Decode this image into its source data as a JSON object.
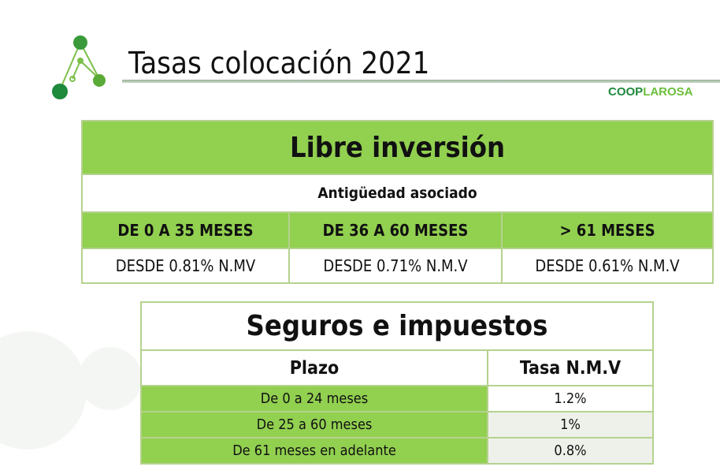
{
  "header": {
    "title": "Tasas colocación 2021",
    "brand_part1": "COOP",
    "brand_part2": "LAROSA"
  },
  "colors": {
    "green": "#92d050",
    "dark_green": "#1e8a3c",
    "light_green": "#6cbf3c"
  },
  "libre": {
    "title": "Libre inversión",
    "subtitle": "Antigüedad asociado",
    "columns": [
      "DE 0 A 35 MESES",
      "DE 36 A 60 MESES",
      "> 61 MESES"
    ],
    "values": [
      "DESDE 0.81% N.MV",
      "DESDE 0.71% N.M.V",
      "DESDE 0.61% N.M.V"
    ]
  },
  "seguros": {
    "title": "Seguros e impuestos",
    "col_plazo": "Plazo",
    "col_tasa": "Tasa N.M.V",
    "rows": [
      {
        "plazo": "De 0 a 24 meses",
        "tasa": "1.2%"
      },
      {
        "plazo": "De 25 a 60 meses",
        "tasa": "1%"
      },
      {
        "plazo": "De 61 meses en adelante",
        "tasa": "0.8%"
      }
    ]
  }
}
